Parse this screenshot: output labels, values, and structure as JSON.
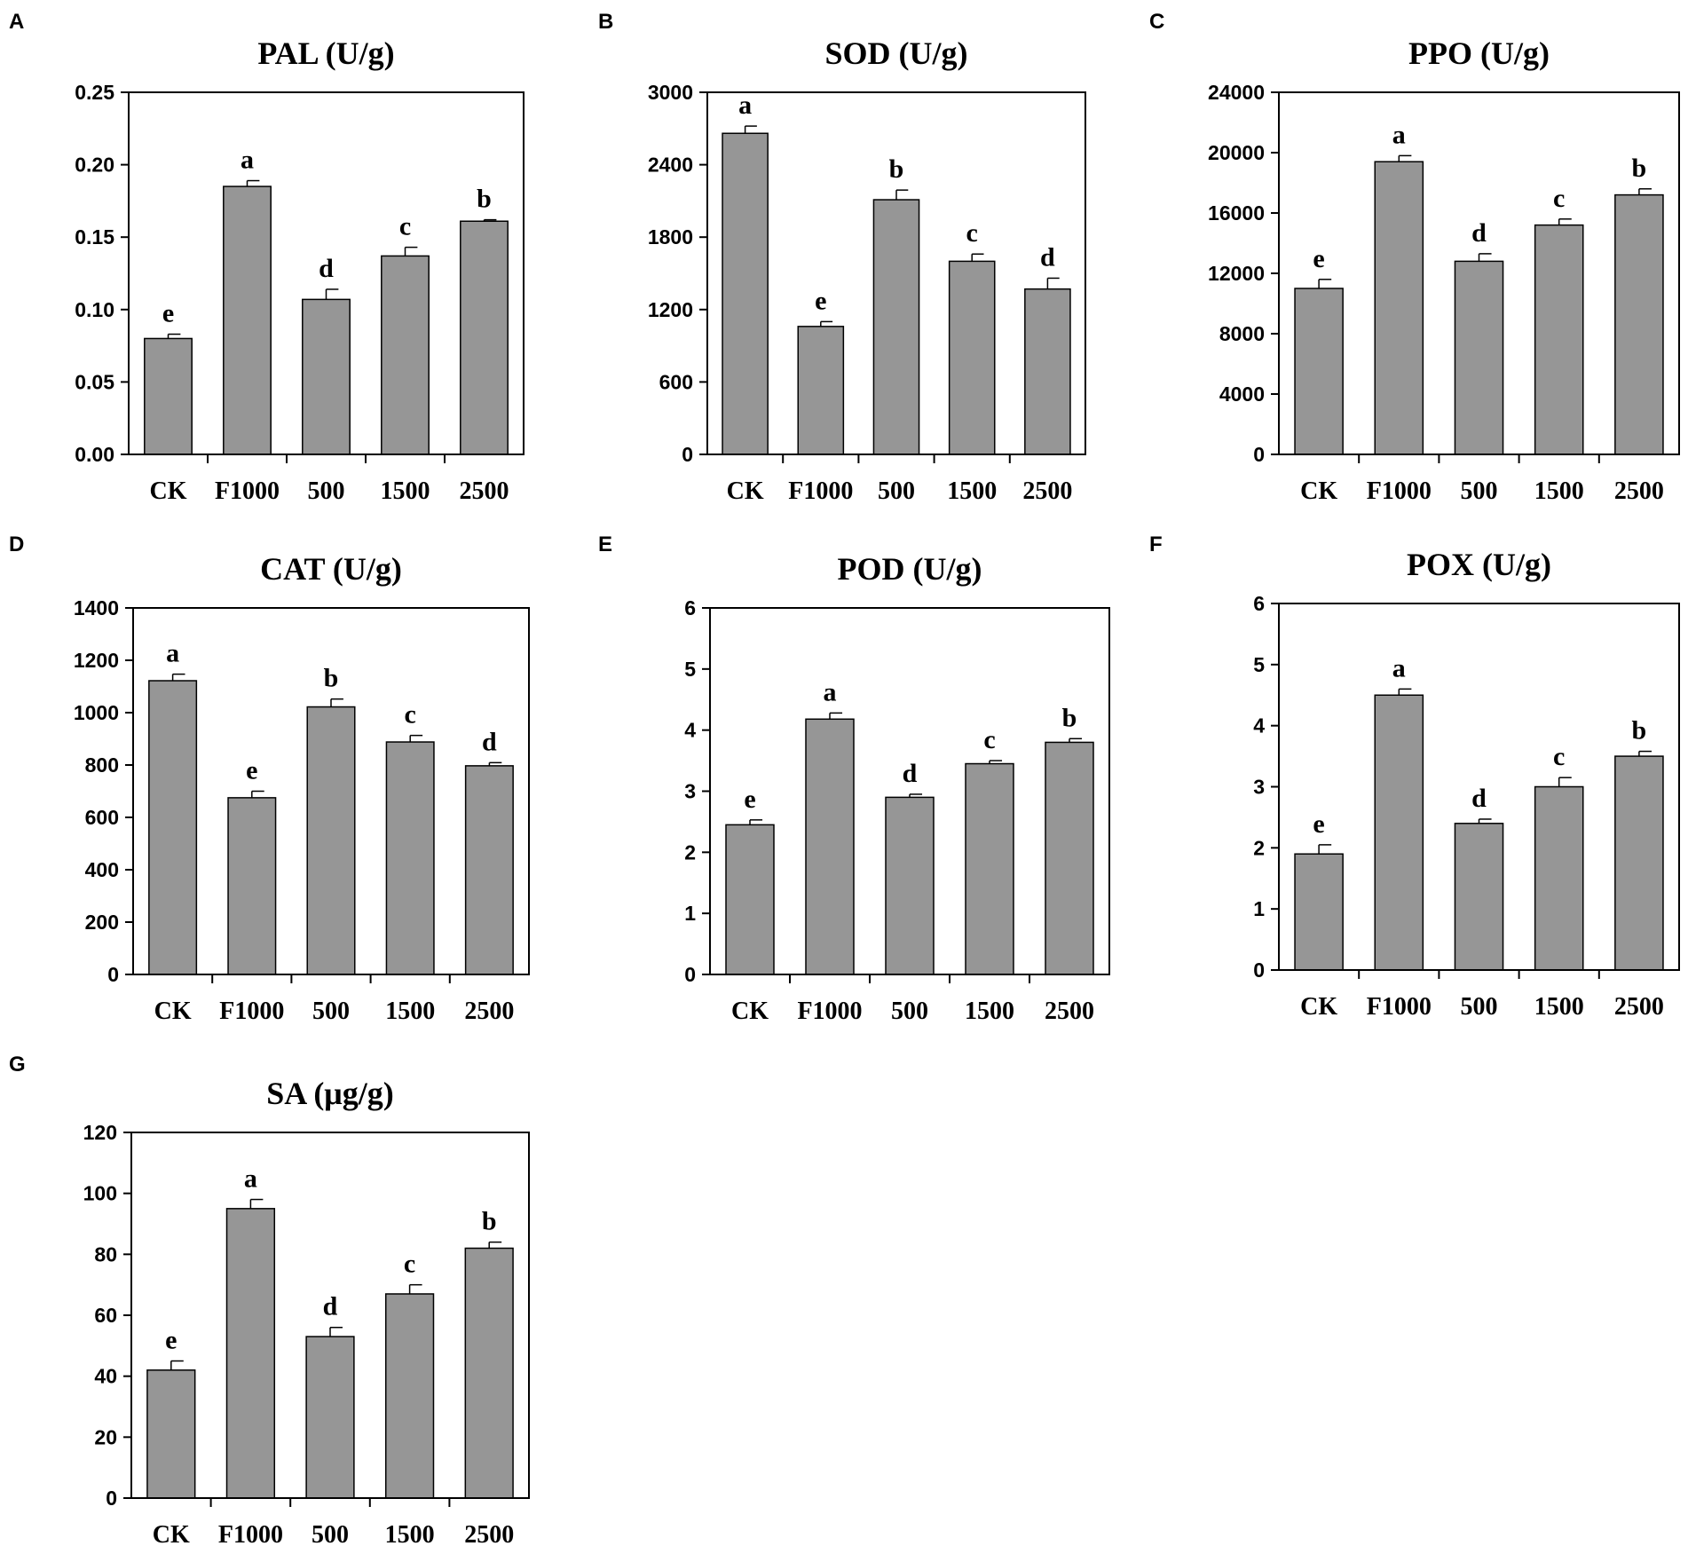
{
  "chart_data": [
    {
      "panel": "A",
      "type": "bar",
      "title": "PAL (U/g)",
      "categories": [
        "CK",
        "F1000",
        "500",
        "1500",
        "2500"
      ],
      "values": [
        0.08,
        0.185,
        0.107,
        0.137,
        0.161
      ],
      "errors": [
        0.003,
        0.004,
        0.007,
        0.006,
        0.001
      ],
      "significance": [
        "e",
        "a",
        "d",
        "c",
        "b"
      ],
      "yticks": [
        0,
        0.05,
        0.1,
        0.15,
        0.2,
        0.25
      ],
      "ytick_labels": [
        "0.00",
        "0.05",
        "0.10",
        "0.15",
        "0.20",
        "0.25"
      ],
      "ylim": [
        0,
        0.25
      ],
      "bar_color": "#969696"
    },
    {
      "panel": "B",
      "type": "bar",
      "title": "SOD (U/g)",
      "categories": [
        "CK",
        "F1000",
        "500",
        "1500",
        "2500"
      ],
      "values": [
        2660,
        1060,
        2110,
        1600,
        1370
      ],
      "errors": [
        60,
        40,
        80,
        60,
        90
      ],
      "significance": [
        "a",
        "e",
        "b",
        "c",
        "d"
      ],
      "yticks": [
        0,
        600,
        1200,
        1800,
        2400,
        3000
      ],
      "ytick_labels": [
        "0",
        "600",
        "1200",
        "1800",
        "2400",
        "3000"
      ],
      "ylim": [
        0,
        3000
      ],
      "bar_color": "#969696"
    },
    {
      "panel": "C",
      "type": "bar",
      "title": "PPO (U/g)",
      "categories": [
        "CK",
        "F1000",
        "500",
        "1500",
        "2500"
      ],
      "values": [
        11000,
        19400,
        12800,
        15200,
        17200
      ],
      "errors": [
        600,
        400,
        500,
        400,
        400
      ],
      "significance": [
        "e",
        "a",
        "d",
        "c",
        "b"
      ],
      "yticks": [
        0,
        4000,
        8000,
        12000,
        16000,
        20000,
        24000
      ],
      "ytick_labels": [
        "0",
        "4000",
        "8000",
        "12000",
        "16000",
        "20000",
        "24000"
      ],
      "ylim": [
        0,
        24000
      ],
      "bar_color": "#969696"
    },
    {
      "panel": "D",
      "type": "bar",
      "title": "CAT (U/g)",
      "categories": [
        "CK",
        "F1000",
        "500",
        "1500",
        "2500"
      ],
      "values": [
        1122,
        675,
        1022,
        888,
        797
      ],
      "errors": [
        25,
        25,
        30,
        25,
        12
      ],
      "significance": [
        "a",
        "e",
        "b",
        "c",
        "d"
      ],
      "yticks": [
        0,
        200,
        400,
        600,
        800,
        1000,
        1200,
        1400
      ],
      "ytick_labels": [
        "0",
        "200",
        "400",
        "600",
        "800",
        "1000",
        "1200",
        "1400"
      ],
      "ylim": [
        0,
        1400
      ],
      "bar_color": "#969696"
    },
    {
      "panel": "E",
      "type": "bar",
      "title": "POD (U/g)",
      "categories": [
        "CK",
        "F1000",
        "500",
        "1500",
        "2500"
      ],
      "values": [
        2.45,
        4.18,
        2.9,
        3.45,
        3.8
      ],
      "errors": [
        0.08,
        0.1,
        0.05,
        0.05,
        0.06
      ],
      "significance": [
        "e",
        "a",
        "d",
        "c",
        "b"
      ],
      "yticks": [
        0,
        1,
        2,
        3,
        4,
        5,
        6
      ],
      "ytick_labels": [
        "0",
        "1",
        "2",
        "3",
        "4",
        "5",
        "6"
      ],
      "ylim": [
        0,
        6
      ],
      "bar_color": "#969696"
    },
    {
      "panel": "F",
      "type": "bar",
      "title": "POX (U/g)",
      "categories": [
        "CK",
        "F1000",
        "500",
        "1500",
        "2500"
      ],
      "values": [
        1.9,
        4.5,
        2.4,
        3.0,
        3.5
      ],
      "errors": [
        0.15,
        0.1,
        0.07,
        0.15,
        0.08
      ],
      "significance": [
        "e",
        "a",
        "d",
        "c",
        "b"
      ],
      "yticks": [
        0,
        1,
        2,
        3,
        4,
        5,
        6
      ],
      "ytick_labels": [
        "0",
        "1",
        "2",
        "3",
        "4",
        "5",
        "6"
      ],
      "ylim": [
        0,
        6
      ],
      "bar_color": "#969696"
    },
    {
      "panel": "G",
      "type": "bar",
      "title": "SA (μg/g)",
      "categories": [
        "CK",
        "F1000",
        "500",
        "1500",
        "2500"
      ],
      "values": [
        42,
        95,
        53,
        67,
        82
      ],
      "errors": [
        3,
        3,
        3,
        3,
        2
      ],
      "significance": [
        "e",
        "a",
        "d",
        "c",
        "b"
      ],
      "yticks": [
        0,
        20,
        40,
        60,
        80,
        100,
        120
      ],
      "ytick_labels": [
        "0",
        "20",
        "40",
        "60",
        "80",
        "100",
        "120"
      ],
      "ylim": [
        0,
        120
      ],
      "bar_color": "#969696"
    }
  ]
}
